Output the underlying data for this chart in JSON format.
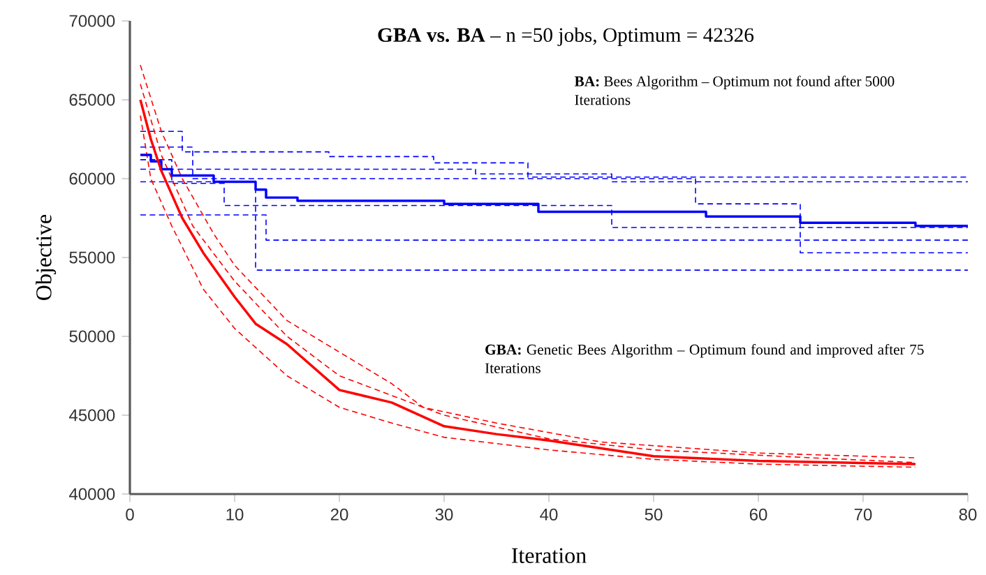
{
  "chart_data": {
    "type": "line",
    "title": "**GBA vs. BA** – n =50 jobs, Optimum = 42326",
    "xlabel": "Iteration",
    "ylabel": "Objective",
    "annotations": [
      "**BA:** Bees Algorithm – Optimum not found after 5000 Iterations",
      "**GBA:** Genetic Bees Algorithm – Optimum found and improved after 75 Iterations"
    ],
    "xlim": [
      0,
      80
    ],
    "ylim": [
      40000,
      70000
    ],
    "xticks": [
      0,
      10,
      20,
      30,
      40,
      50,
      60,
      70,
      80
    ],
    "yticks": [
      40000,
      45000,
      50000,
      55000,
      60000,
      65000,
      70000
    ],
    "series": [
      {
        "type": "step",
        "color": "#0000ff",
        "line_style": "dashed",
        "x": [
          1,
          5,
          19,
          29,
          38,
          80
        ],
        "values": [
          63000,
          61700,
          61400,
          61000,
          60100,
          60100
        ]
      },
      {
        "type": "step",
        "color": "#0000ff",
        "line_style": "dashed",
        "x": [
          1,
          33,
          46,
          80
        ],
        "values": [
          60600,
          60300,
          59800,
          59800
        ]
      },
      {
        "type": "step",
        "color": "#0000ff",
        "line_style": "dashed",
        "x": [
          1,
          13,
          80
        ],
        "values": [
          57700,
          56100,
          56100
        ]
      },
      {
        "type": "step",
        "color": "#0000ff",
        "line_style": "dashed",
        "x": [
          1,
          12,
          80
        ],
        "values": [
          59800,
          54200,
          54200
        ]
      },
      {
        "type": "step",
        "color": "#0000ff",
        "line_style": "dashed",
        "x": [
          1,
          4,
          9,
          46,
          80
        ],
        "values": [
          61200,
          59700,
          58300,
          56900,
          56900
        ]
      },
      {
        "type": "step",
        "color": "#0000ff",
        "line_style": "dashed",
        "x": [
          1,
          6,
          54,
          64,
          80
        ],
        "values": [
          62000,
          60000,
          58400,
          55300,
          55300
        ]
      },
      {
        "color": "#ff0000",
        "line_style": "dashed",
        "x": [
          1,
          3,
          5,
          8,
          10,
          15,
          20,
          25,
          28,
          35,
          45,
          60,
          75
        ],
        "values": [
          67200,
          63000,
          60000,
          56500,
          54500,
          51000,
          49000,
          47000,
          45500,
          44500,
          43300,
          42600,
          42300
        ]
      },
      {
        "color": "#ff0000",
        "line_style": "dashed",
        "x": [
          1,
          2,
          4,
          7,
          10,
          15,
          20,
          25,
          30,
          40,
          50,
          60,
          75
        ],
        "values": [
          64000,
          60000,
          57000,
          53000,
          50500,
          47500,
          45500,
          44500,
          43600,
          42800,
          42200,
          41900,
          41700
        ]
      },
      {
        "color": "#ff0000",
        "line_style": "dashed",
        "x": [
          1,
          3,
          6,
          10,
          15,
          20,
          30,
          40,
          50,
          65,
          75
        ],
        "values": [
          66000,
          61500,
          57000,
          53500,
          50000,
          47500,
          45000,
          43500,
          42800,
          42300,
          42000
        ]
      },
      {
        "type": "step",
        "color": "#0000ff",
        "line_style": "solid",
        "x": [
          1,
          2,
          3,
          4,
          8,
          12,
          13,
          16,
          30,
          39,
          55,
          64,
          75,
          80
        ],
        "values": [
          61500,
          61100,
          60600,
          60200,
          59800,
          59300,
          58800,
          58600,
          58400,
          57900,
          57600,
          57200,
          57000,
          57000
        ]
      },
      {
        "color": "#ff0000",
        "line_style": "solid",
        "x": [
          1,
          2,
          3,
          5,
          7,
          10,
          12,
          15,
          20,
          25,
          30,
          35,
          40,
          50,
          60,
          75
        ],
        "values": [
          65000,
          62500,
          60500,
          57500,
          55300,
          52500,
          50800,
          49500,
          46600,
          45800,
          44300,
          43800,
          43400,
          42400,
          42100,
          41900
        ]
      }
    ]
  }
}
